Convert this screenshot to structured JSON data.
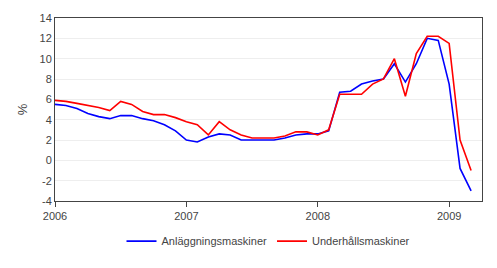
{
  "chart_data": {
    "type": "line",
    "ylabel": "%",
    "x": [
      2006.0,
      2006.083,
      2006.167,
      2006.25,
      2006.333,
      2006.417,
      2006.5,
      2006.583,
      2006.667,
      2006.75,
      2006.833,
      2006.917,
      2007.0,
      2007.083,
      2007.167,
      2007.25,
      2007.333,
      2007.417,
      2007.5,
      2007.583,
      2007.667,
      2007.75,
      2007.833,
      2007.917,
      2008.0,
      2008.083,
      2008.167,
      2008.25,
      2008.333,
      2008.417,
      2008.5,
      2008.583,
      2008.667,
      2008.75,
      2008.833,
      2008.917,
      2009.0,
      2009.083,
      2009.167
    ],
    "series": [
      {
        "name": "Anläggningsmaskiner",
        "color": "#0000FF",
        "values": [
          5.5,
          5.4,
          5.1,
          4.6,
          4.3,
          4.1,
          4.4,
          4.4,
          4.1,
          3.9,
          3.5,
          2.9,
          2.0,
          1.8,
          2.3,
          2.6,
          2.5,
          2.0,
          2.0,
          2.0,
          2.0,
          2.2,
          2.5,
          2.6,
          2.6,
          2.9,
          6.7,
          6.8,
          7.5,
          7.8,
          8.0,
          9.5,
          7.7,
          9.5,
          12.0,
          11.8,
          7.5,
          -0.8,
          -3.0
        ]
      },
      {
        "name": "Underhållsmaskiner",
        "color": "#FF0000",
        "values": [
          5.9,
          5.8,
          5.6,
          5.4,
          5.2,
          4.9,
          5.8,
          5.5,
          4.8,
          4.5,
          4.5,
          4.2,
          3.8,
          3.5,
          2.5,
          3.8,
          3.0,
          2.5,
          2.2,
          2.2,
          2.2,
          2.4,
          2.8,
          2.8,
          2.5,
          3.0,
          6.5,
          6.5,
          6.5,
          7.5,
          8.0,
          10.0,
          6.3,
          10.5,
          12.2,
          12.2,
          11.5,
          2.0,
          -1.0
        ]
      }
    ],
    "xlim": [
      2006.0,
      2009.25
    ],
    "xticks": [
      2006,
      2007,
      2008,
      2009
    ],
    "ylim": [
      -4,
      14
    ],
    "yticks": [
      -4,
      -2,
      0,
      2,
      4,
      6,
      8,
      10,
      12,
      14
    ],
    "grid": true,
    "legend": "bottom"
  }
}
